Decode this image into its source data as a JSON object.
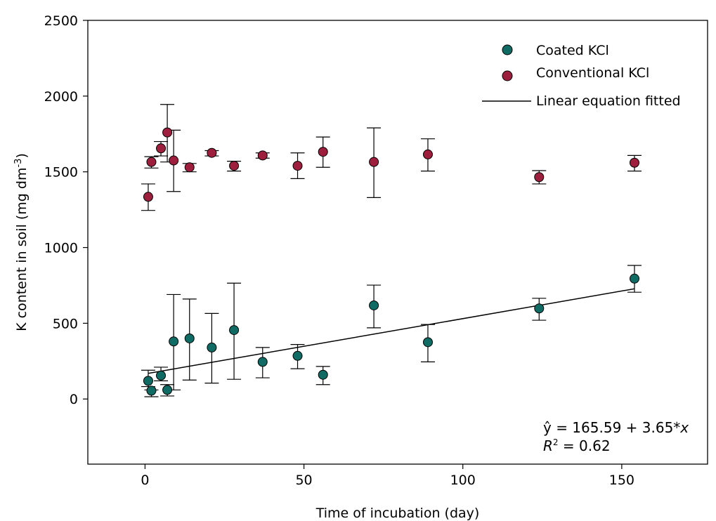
{
  "chart_data": {
    "type": "scatter",
    "xlabel": "Time of incubation (day)",
    "ylabel": "K content in soil (mg dm",
    "ylabel_sup": "-3",
    "ylabel_close": ")",
    "xlim": [
      -18,
      177
    ],
    "ylim": [
      -430,
      2500
    ],
    "x_ticks": [
      0,
      50,
      100,
      150
    ],
    "y_ticks": [
      0,
      500,
      1000,
      1500,
      2000,
      2500
    ],
    "grid": false,
    "legend_position": "top-right",
    "series": [
      {
        "name": "Coated KCl",
        "color": "#0f6b63",
        "x": [
          1,
          2,
          5,
          7,
          9,
          14,
          21,
          28,
          37,
          48,
          56,
          72,
          89,
          124,
          154
        ],
        "y": [
          120,
          55,
          155,
          60,
          380,
          400,
          340,
          455,
          245,
          285,
          160,
          618,
          375,
          598,
          795
        ],
        "err_low": [
          82,
          15,
          120,
          20,
          60,
          125,
          105,
          130,
          140,
          200,
          95,
          470,
          245,
          520,
          705
        ],
        "err_high": [
          190,
          60,
          210,
          95,
          690,
          660,
          565,
          765,
          340,
          360,
          215,
          752,
          492,
          665,
          882
        ]
      },
      {
        "name": "Conventional KCl",
        "color": "#9e1f3d",
        "x": [
          1,
          2,
          5,
          7,
          9,
          14,
          21,
          28,
          37,
          48,
          56,
          72,
          89,
          124,
          154
        ],
        "y": [
          1335,
          1565,
          1655,
          1760,
          1575,
          1530,
          1625,
          1540,
          1608,
          1540,
          1632,
          1565,
          1615,
          1465,
          1560
        ],
        "err_low": [
          1245,
          1525,
          1605,
          1565,
          1370,
          1500,
          1605,
          1505,
          1590,
          1455,
          1530,
          1330,
          1505,
          1420,
          1505
        ],
        "err_high": [
          1420,
          1600,
          1700,
          1945,
          1775,
          1555,
          1640,
          1570,
          1625,
          1625,
          1730,
          1790,
          1718,
          1508,
          1608
        ]
      }
    ],
    "fit_line": {
      "name": "Linear equation fitted",
      "color": "#000000",
      "intercept": 165.59,
      "slope": 3.65,
      "x_range": [
        1,
        154
      ]
    },
    "equation": {
      "yhat": "ŷ = 165.59 + 3.65*",
      "x_var": "x",
      "r2_label": "R",
      "r2_sup": "2",
      "r2_value": " = 0.62"
    }
  }
}
